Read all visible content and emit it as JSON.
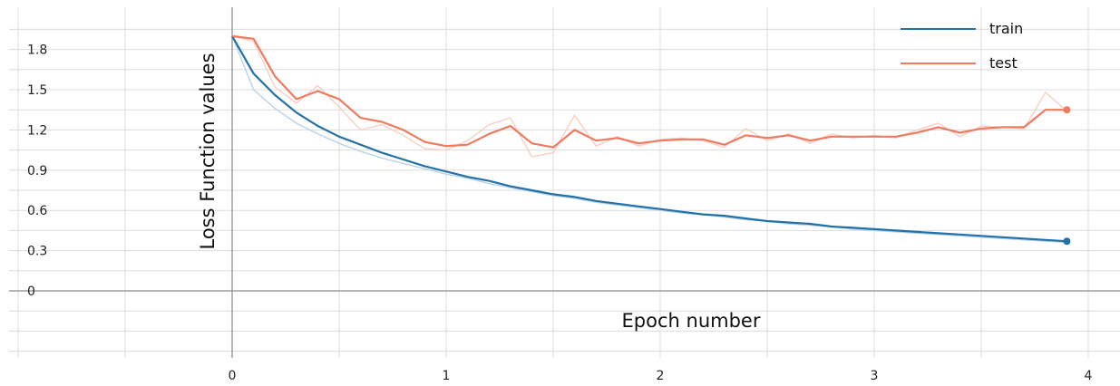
{
  "chart_data": {
    "type": "line",
    "title": "",
    "xlabel": "Epoch number",
    "ylabel": "Loss Function values",
    "xlim": [
      -1.05,
      4.2
    ],
    "ylim": [
      -0.55,
      2.05
    ],
    "x_ticks": [
      0,
      1,
      2,
      3,
      4
    ],
    "y_ticks": [
      0,
      0.3,
      0.6,
      0.9,
      1.2,
      1.5,
      1.8
    ],
    "x_tick_labels": [
      "0",
      "1",
      "2",
      "3",
      "4"
    ],
    "y_tick_labels": [
      "0",
      "0.3",
      "0.6",
      "0.9",
      "1.2",
      "1.5",
      "1.8"
    ],
    "grid": true,
    "legend_position": "top-right",
    "series": [
      {
        "name": "train",
        "color": "#2471a8",
        "raw_color": "#b9d3e6",
        "x": [
          0,
          0.1,
          0.2,
          0.3,
          0.4,
          0.5,
          0.6,
          0.7,
          0.8,
          0.9,
          1.0,
          1.1,
          1.2,
          1.3,
          1.4,
          1.5,
          1.6,
          1.7,
          1.8,
          1.9,
          2.0,
          2.1,
          2.2,
          2.3,
          2.4,
          2.5,
          2.6,
          2.7,
          2.8,
          2.9,
          3.0,
          3.1,
          3.2,
          3.3,
          3.4,
          3.5,
          3.6,
          3.7,
          3.8,
          3.9
        ],
        "values": [
          1.9,
          1.62,
          1.46,
          1.33,
          1.23,
          1.15,
          1.09,
          1.03,
          0.98,
          0.93,
          0.89,
          0.85,
          0.82,
          0.78,
          0.75,
          0.72,
          0.7,
          0.67,
          0.65,
          0.63,
          0.61,
          0.59,
          0.57,
          0.56,
          0.54,
          0.52,
          0.51,
          0.5,
          0.48,
          0.47,
          0.46,
          0.45,
          0.44,
          0.43,
          0.42,
          0.41,
          0.4,
          0.39,
          0.38,
          0.37
        ],
        "raw_values": [
          1.9,
          1.5,
          1.36,
          1.25,
          1.17,
          1.1,
          1.04,
          0.99,
          0.95,
          0.91,
          0.87,
          0.84,
          0.8,
          0.77,
          0.74,
          0.71,
          0.69,
          0.66,
          0.64,
          0.62,
          0.6,
          0.58,
          0.57,
          0.55,
          0.53,
          0.52,
          0.5,
          0.49,
          0.48,
          0.46,
          0.45,
          0.44,
          0.43,
          0.42,
          0.41,
          0.4,
          0.39,
          0.38,
          0.37,
          0.36
        ]
      },
      {
        "name": "test",
        "color": "#f07a5e",
        "raw_color": "#f9cfc3",
        "x": [
          0,
          0.1,
          0.2,
          0.3,
          0.4,
          0.5,
          0.6,
          0.7,
          0.8,
          0.9,
          1.0,
          1.1,
          1.2,
          1.3,
          1.4,
          1.5,
          1.6,
          1.7,
          1.8,
          1.9,
          2.0,
          2.1,
          2.2,
          2.3,
          2.4,
          2.5,
          2.6,
          2.7,
          2.8,
          2.9,
          3.0,
          3.1,
          3.2,
          3.3,
          3.4,
          3.5,
          3.6,
          3.7,
          3.8,
          3.9
        ],
        "values": [
          1.9,
          1.88,
          1.6,
          1.43,
          1.49,
          1.43,
          1.29,
          1.26,
          1.2,
          1.11,
          1.08,
          1.09,
          1.17,
          1.23,
          1.1,
          1.07,
          1.2,
          1.12,
          1.14,
          1.1,
          1.12,
          1.13,
          1.13,
          1.09,
          1.16,
          1.14,
          1.16,
          1.12,
          1.15,
          1.15,
          1.15,
          1.15,
          1.18,
          1.22,
          1.18,
          1.21,
          1.22,
          1.22,
          1.35,
          1.35
        ],
        "raw_values": [
          1.9,
          1.86,
          1.52,
          1.4,
          1.53,
          1.37,
          1.2,
          1.24,
          1.16,
          1.06,
          1.05,
          1.12,
          1.24,
          1.29,
          1.0,
          1.03,
          1.31,
          1.08,
          1.15,
          1.08,
          1.13,
          1.14,
          1.12,
          1.07,
          1.21,
          1.12,
          1.17,
          1.1,
          1.17,
          1.14,
          1.16,
          1.14,
          1.2,
          1.25,
          1.15,
          1.23,
          1.22,
          1.21,
          1.48,
          1.34
        ]
      }
    ]
  }
}
